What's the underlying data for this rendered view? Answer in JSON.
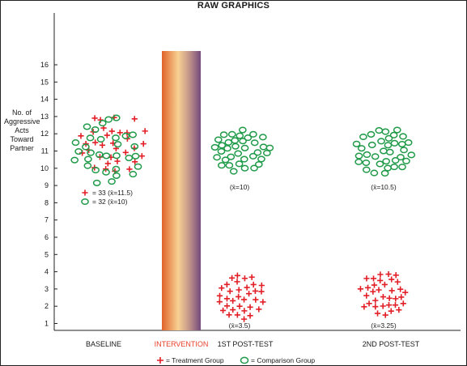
{
  "chart_data": {
    "type": "scatter",
    "title": "RAW GRAPHICS",
    "ylabel": "No. of Aggressive Acts Toward Partner",
    "yticks": [
      1,
      2,
      3,
      4,
      5,
      6,
      7,
      8,
      9,
      10,
      11,
      12,
      13,
      14,
      15,
      16
    ],
    "ylim": [
      0.5,
      17.5
    ],
    "categories": [
      "BASELINE",
      "INTERVENTION",
      "1ST POST-TEST",
      "2ND POST-TEST"
    ],
    "intervention_label": "INTERVENTION",
    "series": [
      {
        "name": "Treatment Group",
        "marker": "plus",
        "color": "#e21f26",
        "groups": [
          {
            "category": "BASELINE",
            "n": 33,
            "mean": 11.5
          },
          {
            "category": "1ST POST-TEST",
            "mean": 3.5
          },
          {
            "category": "2ND POST-TEST",
            "mean": 3.25
          }
        ]
      },
      {
        "name": "Comparison Group",
        "marker": "circle",
        "color": "#1f9a48",
        "groups": [
          {
            "category": "BASELINE",
            "n": 32,
            "mean": 10
          },
          {
            "category": "1ST POST-TEST",
            "mean": 10
          },
          {
            "category": "2ND POST-TEST",
            "mean": 10.5
          }
        ]
      }
    ],
    "baseline_legend": {
      "treatment": "= 33 (x̄=11.5)",
      "comparison": "= 32 (x̄=10)"
    },
    "mean_labels": {
      "post1_comparison": "(x̄=10)",
      "post1_treatment": "(x̄=3.5)",
      "post2_comparison": "(x̄=10.5)",
      "post2_treatment": "(x̄=3.25)"
    },
    "legend": {
      "treatment": "= Treatment Group",
      "comparison": "= Comparison Group",
      "placement": "bottom-center"
    }
  },
  "colors": {
    "treatment": "#e21f26",
    "comparison": "#1f9a48",
    "axis": "#222222",
    "intervention_bar": [
      "#e06a2c",
      "#f6c98a",
      "#7b4f7e"
    ]
  }
}
